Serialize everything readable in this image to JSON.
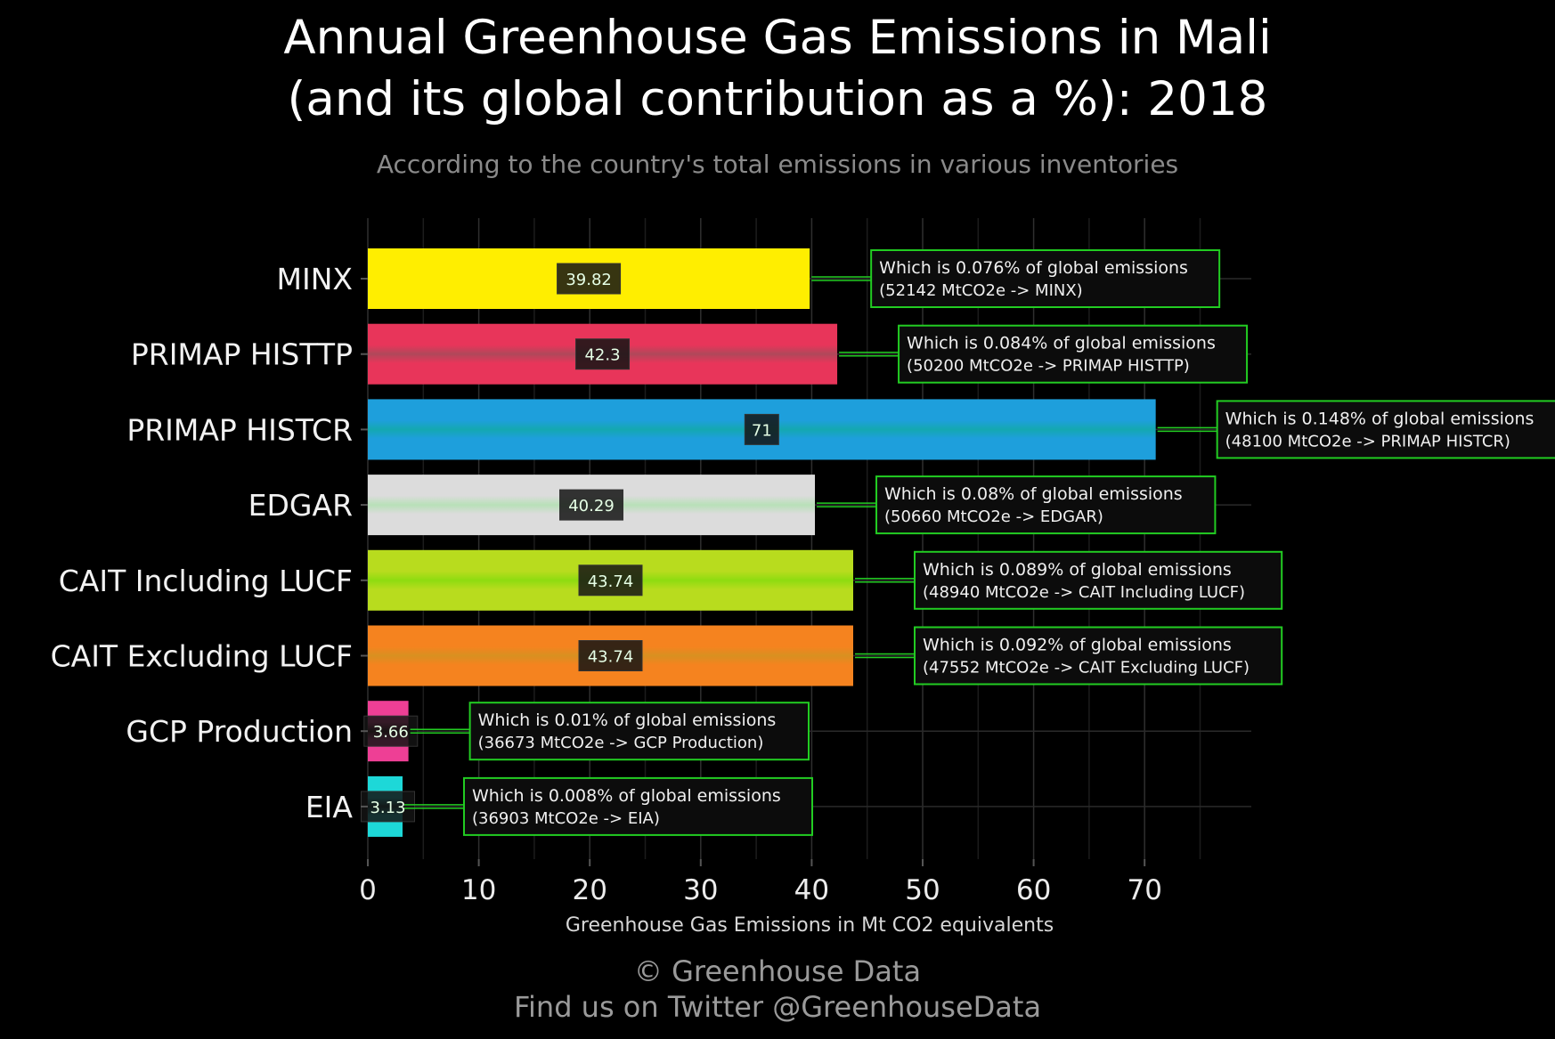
{
  "title_line1": "Annual Greenhouse Gas Emissions in Mali",
  "title_line2": "(and its global contribution as a %): 2018",
  "subtitle": "According to the country's total emissions in various inventories",
  "footer_line1": "© Greenhouse Data",
  "footer_line2": "Find us on Twitter @GreenhouseData",
  "chart_data": {
    "type": "bar",
    "orientation": "horizontal",
    "categories": [
      "MINX",
      "PRIMAP HISTTP",
      "PRIMAP HISTCR",
      "EDGAR",
      "CAIT Including LUCF",
      "CAIT Excluding LUCF",
      "GCP Production",
      "EIA"
    ],
    "values": [
      39.82,
      42.3,
      71,
      40.29,
      43.74,
      43.74,
      3.66,
      3.13
    ],
    "value_labels": [
      "39.82",
      "42.3",
      "71",
      "40.29",
      "43.74",
      "43.74",
      "3.66",
      "3.13"
    ],
    "colors": [
      "#ffee00",
      "#e8355a",
      "#1e9fdc",
      "#dcdcdc",
      "#b8dc1e",
      "#f5831f",
      "#ee3f95",
      "#1dd8d8"
    ],
    "annotations": [
      {
        "line1": "Which is 0.076% of global emissions",
        "line2": "(52142 MtCO2e -> MINX)"
      },
      {
        "line1": "Which is 0.084% of global emissions",
        "line2": "(50200 MtCO2e -> PRIMAP HISTTP)"
      },
      {
        "line1": "Which is 0.148% of global emissions",
        "line2": "(48100 MtCO2e -> PRIMAP HISTCR)"
      },
      {
        "line1": "Which is 0.08% of global emissions",
        "line2": "(50660 MtCO2e -> EDGAR)"
      },
      {
        "line1": "Which is 0.089% of global emissions",
        "line2": "(48940 MtCO2e -> CAIT Including LUCF)"
      },
      {
        "line1": "Which is 0.092% of global emissions",
        "line2": "(47552 MtCO2e -> CAIT Excluding LUCF)"
      },
      {
        "line1": "Which is 0.01% of global emissions",
        "line2": "(36673 MtCO2e -> GCP Production)"
      },
      {
        "line1": "Which is 0.008% of global emissions",
        "line2": "(36903 MtCO2e -> EIA)"
      }
    ],
    "xlabel": "Greenhouse Gas Emissions in Mt CO2 equivalents",
    "xticks": [
      0,
      10,
      20,
      30,
      40,
      50,
      60,
      70
    ],
    "xlim": [
      0,
      80
    ],
    "grid": true,
    "annotation_border_color": "#22cc22",
    "background": "#000000"
  }
}
